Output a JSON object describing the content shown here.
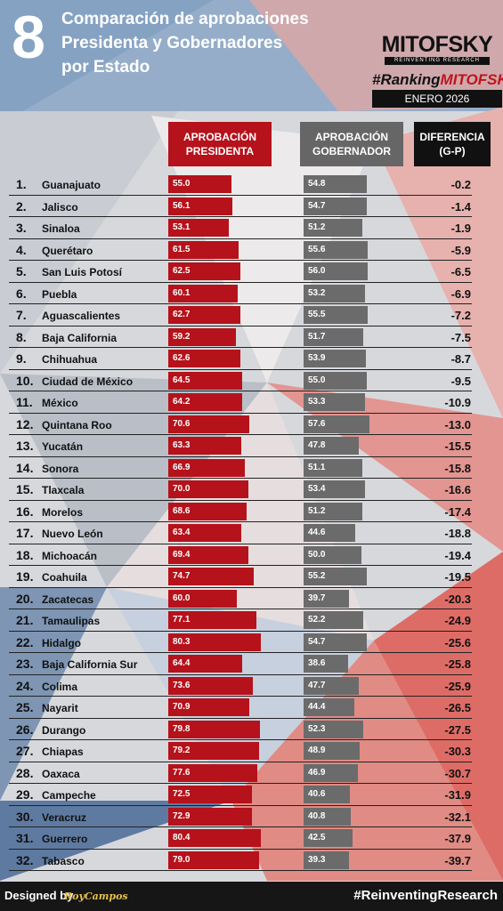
{
  "header": {
    "number": "8",
    "title_lines": [
      "Comparación de aprobaciones",
      "Presidenta y Gobernadores",
      "por Estado"
    ],
    "logo": "MITOFSKY",
    "logo_tagline": "REINVENTING RESEARCH",
    "ranking_prefix": "#Ranking",
    "ranking_brand": "MITOFSKY",
    "date": "ENERO 2026"
  },
  "columns": {
    "president": "APROBACIÓN PRESIDENTA",
    "governor": "APROBACIÓN GOBERNADOR",
    "difference": "DIFERENCIA (G-P)"
  },
  "colors": {
    "president_bar": "#b5121b",
    "governor_bar": "#6b6b6b",
    "difference_header": "#111111"
  },
  "chart_data": {
    "type": "bar",
    "categories": [
      "Guanajuato",
      "Jalisco",
      "Sinaloa",
      "Querétaro",
      "San Luis Potosí",
      "Puebla",
      "Aguascalientes",
      "Baja California",
      "Chihuahua",
      "Ciudad de México",
      "México",
      "Quintana Roo",
      "Yucatán",
      "Sonora",
      "Tlaxcala",
      "Morelos",
      "Nuevo León",
      "Michoacán",
      "Coahuila",
      "Zacatecas",
      "Tamaulipas",
      "Hidalgo",
      "Baja California Sur",
      "Colima",
      "Nayarit",
      "Durango",
      "Chiapas",
      "Oaxaca",
      "Campeche",
      "Veracruz",
      "Guerrero",
      "Tabasco"
    ],
    "ranks": [
      "1.",
      "2.",
      "3.",
      "4.",
      "5.",
      "6.",
      "7.",
      "8.",
      "9.",
      "10.",
      "11.",
      "12.",
      "13.",
      "14.",
      "15.",
      "16.",
      "17.",
      "18.",
      "19.",
      "20.",
      "21.",
      "22.",
      "23.",
      "24.",
      "25.",
      "26.",
      "27.",
      "28.",
      "29.",
      "30.",
      "31.",
      "32."
    ],
    "series": [
      {
        "name": "APROBACIÓN PRESIDENTA",
        "values": [
          "55.0",
          "56.1",
          "53.1",
          "61.5",
          "62.5",
          "60.1",
          "62.7",
          "59.2",
          "62.6",
          "64.5",
          "64.2",
          "70.6",
          "63.3",
          "66.9",
          "70.0",
          "68.6",
          "63.4",
          "69.4",
          "74.7",
          "60.0",
          "77.1",
          "80.3",
          "64.4",
          "73.6",
          "70.9",
          "79.8",
          "79.2",
          "77.6",
          "72.5",
          "72.9",
          "80.4",
          "79.0"
        ]
      },
      {
        "name": "APROBACIÓN GOBERNADOR",
        "values": [
          "54.8",
          "54.7",
          "51.2",
          "55.6",
          "56.0",
          "53.2",
          "55.5",
          "51.7",
          "53.9",
          "55.0",
          "53.3",
          "57.6",
          "47.8",
          "51.1",
          "53.4",
          "51.2",
          "44.6",
          "50.0",
          "55.2",
          "39.7",
          "52.2",
          "54.7",
          "38.6",
          "47.7",
          "44.4",
          "52.3",
          "48.9",
          "46.9",
          "40.6",
          "40.8",
          "42.5",
          "39.3"
        ]
      },
      {
        "name": "DIFERENCIA (G-P)",
        "values": [
          "-0.2",
          "-1.4",
          "-1.9",
          "-5.9",
          "-6.5",
          "-6.9",
          "-7.2",
          "-7.5",
          "-8.7",
          "-9.5",
          "-10.9",
          "-13.0",
          "-15.5",
          "-15.8",
          "-16.6",
          "-17.4",
          "-18.8",
          "-19.4",
          "-19.5",
          "-20.3",
          "-24.9",
          "-25.6",
          "-25.8",
          "-25.9",
          "-26.5",
          "-27.5",
          "-30.3",
          "-30.7",
          "-31.9",
          "-32.1",
          "-37.9",
          "-39.7"
        ]
      }
    ]
  },
  "footer": {
    "designed_by": "Designed by",
    "author": "RoyCampos",
    "hashtag": "#ReinventingResearch"
  }
}
